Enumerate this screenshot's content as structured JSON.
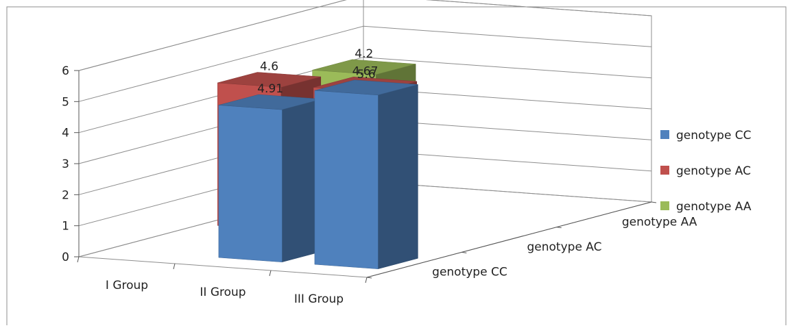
{
  "chart_data": {
    "type": "bar",
    "variant": "3d-clustered-column",
    "title": "",
    "xlabel": "",
    "ylabel": "",
    "categories": [
      "I Group",
      "II Group",
      "III Group"
    ],
    "depth_categories": [
      "genotype CC",
      "genotype AC",
      "genotype AA"
    ],
    "ylim": [
      0,
      6
    ],
    "yticks": [
      0,
      1,
      2,
      3,
      4,
      5,
      6
    ],
    "grid": true,
    "legend_position": "right",
    "series": [
      {
        "name": "genotype CC",
        "color": "#4F81BD",
        "values": [
          null,
          4.91,
          5.6
        ]
      },
      {
        "name": "genotype AC",
        "color": "#C0504D",
        "values": [
          4.6,
          4.67,
          null
        ]
      },
      {
        "name": "genotype AA",
        "color": "#9BBB59",
        "values": [
          4.2,
          null,
          null
        ]
      }
    ],
    "data_labels": [
      {
        "series": "genotype AC",
        "category": "I Group",
        "text": "4.6"
      },
      {
        "series": "genotype AA",
        "category": "I Group",
        "text": "4.2"
      },
      {
        "series": "genotype CC",
        "category": "II Group",
        "text": "4.91"
      },
      {
        "series": "genotype AC",
        "category": "II Group",
        "text": "4.67"
      },
      {
        "series": "genotype CC",
        "category": "III Group",
        "text": "5.6"
      }
    ]
  }
}
